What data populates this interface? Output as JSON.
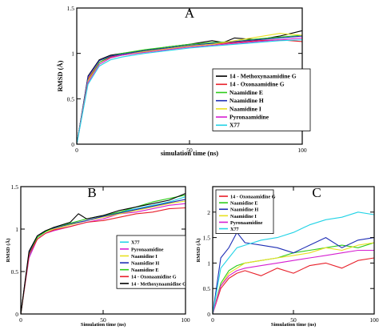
{
  "chart_data": [
    {
      "panel": "A",
      "type": "line",
      "xlabel": "simulation time (ns)",
      "ylabel": "RMSD (Å)",
      "xlim": [
        0,
        100
      ],
      "ylim": [
        0,
        1.5
      ],
      "xticks": [
        "0",
        "50",
        "100"
      ],
      "yticks": [
        "0",
        "0.5",
        "1",
        "1.5"
      ],
      "grid": false,
      "legend": "center-right",
      "series": [
        {
          "name": "14 - Methoxynaamidine G",
          "color": "#000000",
          "x": [
            0,
            5,
            10,
            15,
            20,
            30,
            40,
            50,
            60,
            65,
            70,
            80,
            90,
            100
          ],
          "y": [
            0,
            0.75,
            0.93,
            0.98,
            1.0,
            1.03,
            1.07,
            1.1,
            1.14,
            1.12,
            1.17,
            1.15,
            1.19,
            1.25
          ]
        },
        {
          "name": "14 - Oxonaamidine G",
          "color": "#e8202a",
          "x": [
            0,
            5,
            10,
            15,
            20,
            30,
            40,
            50,
            60,
            70,
            80,
            90,
            100
          ],
          "y": [
            0,
            0.72,
            0.9,
            0.96,
            0.98,
            1.02,
            1.05,
            1.08,
            1.1,
            1.12,
            1.14,
            1.15,
            1.13
          ]
        },
        {
          "name": "Naamidine E",
          "color": "#2ecc1a",
          "x": [
            0,
            5,
            10,
            15,
            20,
            30,
            40,
            50,
            60,
            70,
            80,
            90,
            100
          ],
          "y": [
            0,
            0.7,
            0.9,
            0.97,
            1.0,
            1.04,
            1.07,
            1.1,
            1.12,
            1.13,
            1.16,
            1.18,
            1.2
          ]
        },
        {
          "name": "Naamidine H",
          "color": "#1f2fb5",
          "x": [
            0,
            5,
            10,
            15,
            20,
            30,
            40,
            50,
            60,
            70,
            80,
            90,
            100
          ],
          "y": [
            0,
            0.74,
            0.92,
            0.97,
            0.99,
            1.03,
            1.06,
            1.09,
            1.11,
            1.13,
            1.15,
            1.17,
            1.19
          ]
        },
        {
          "name": "Naamidine I",
          "color": "#e8e020",
          "x": [
            0,
            5,
            10,
            15,
            20,
            30,
            40,
            50,
            60,
            70,
            80,
            90,
            100
          ],
          "y": [
            0,
            0.7,
            0.88,
            0.95,
            0.98,
            1.02,
            1.05,
            1.08,
            1.1,
            1.14,
            1.18,
            1.22,
            1.2
          ]
        },
        {
          "name": "Pyronaamidine",
          "color": "#d61fd1",
          "x": [
            0,
            5,
            10,
            15,
            20,
            30,
            40,
            50,
            60,
            70,
            80,
            90,
            100
          ],
          "y": [
            0,
            0.68,
            0.88,
            0.95,
            0.98,
            1.01,
            1.04,
            1.07,
            1.09,
            1.11,
            1.13,
            1.15,
            1.17
          ]
        },
        {
          "name": "X77",
          "color": "#22d3e6",
          "x": [
            0,
            5,
            10,
            15,
            20,
            30,
            40,
            50,
            60,
            70,
            80,
            90,
            100
          ],
          "y": [
            0,
            0.66,
            0.86,
            0.93,
            0.96,
            1.0,
            1.03,
            1.06,
            1.08,
            1.1,
            1.12,
            1.14,
            1.15
          ]
        }
      ]
    },
    {
      "panel": "B",
      "type": "line",
      "xlabel": "Simulation time (ns)",
      "ylabel": "RMSD (Å)",
      "xlim": [
        0,
        100
      ],
      "ylim": [
        0,
        1.5
      ],
      "xticks": [
        "0",
        "50",
        "100"
      ],
      "yticks": [
        "0",
        "0.5",
        "1",
        "1.5"
      ],
      "grid": false,
      "legend": "center-right",
      "series": [
        {
          "name": "X77",
          "color": "#22d3e6",
          "x": [
            0,
            5,
            10,
            15,
            20,
            30,
            40,
            50,
            60,
            70,
            80,
            90,
            100
          ],
          "y": [
            0,
            0.68,
            0.9,
            0.97,
            1.0,
            1.05,
            1.1,
            1.15,
            1.2,
            1.24,
            1.28,
            1.32,
            1.38
          ]
        },
        {
          "name": "Pyronaamidine",
          "color": "#d61fd1",
          "x": [
            0,
            5,
            10,
            15,
            20,
            30,
            40,
            50,
            60,
            70,
            80,
            90,
            100
          ],
          "y": [
            0,
            0.66,
            0.88,
            0.95,
            0.98,
            1.03,
            1.08,
            1.12,
            1.18,
            1.2,
            1.24,
            1.28,
            1.3
          ]
        },
        {
          "name": "Naamidine I",
          "color": "#e8e020",
          "x": [
            0,
            5,
            10,
            15,
            20,
            30,
            40,
            50,
            60,
            70,
            80,
            90,
            100
          ],
          "y": [
            0,
            0.7,
            0.9,
            0.97,
            1.0,
            1.05,
            1.1,
            1.14,
            1.18,
            1.22,
            1.26,
            1.3,
            1.33
          ]
        },
        {
          "name": "Naamidine H",
          "color": "#1f2fb5",
          "x": [
            0,
            5,
            10,
            15,
            20,
            30,
            40,
            50,
            60,
            70,
            80,
            90,
            100
          ],
          "y": [
            0,
            0.72,
            0.92,
            0.98,
            1.01,
            1.06,
            1.1,
            1.15,
            1.19,
            1.23,
            1.27,
            1.31,
            1.35
          ]
        },
        {
          "name": "Naamidine E",
          "color": "#2ecc1a",
          "x": [
            0,
            5,
            10,
            15,
            20,
            30,
            40,
            50,
            60,
            70,
            80,
            90,
            100
          ],
          "y": [
            0,
            0.7,
            0.9,
            0.97,
            1.02,
            1.07,
            1.12,
            1.16,
            1.2,
            1.26,
            1.32,
            1.36,
            1.4
          ]
        },
        {
          "name": "14 - Oxonaamidine G",
          "color": "#e8202a",
          "x": [
            0,
            5,
            10,
            15,
            20,
            30,
            40,
            50,
            60,
            70,
            80,
            90,
            100
          ],
          "y": [
            0,
            0.7,
            0.88,
            0.95,
            0.99,
            1.03,
            1.08,
            1.1,
            1.14,
            1.18,
            1.2,
            1.24,
            1.25
          ]
        },
        {
          "name": "14 - Methoxynaamidine G",
          "color": "#000000",
          "x": [
            0,
            5,
            10,
            15,
            20,
            30,
            35,
            40,
            50,
            60,
            70,
            80,
            90,
            100
          ],
          "y": [
            0,
            0.74,
            0.92,
            0.98,
            1.02,
            1.08,
            1.18,
            1.12,
            1.16,
            1.22,
            1.26,
            1.3,
            1.34,
            1.42
          ]
        }
      ]
    },
    {
      "panel": "C",
      "type": "line",
      "xlabel": "Simulation time (ns)",
      "ylabel": "RMSD (Å)",
      "xlim": [
        0,
        100
      ],
      "ylim": [
        0,
        2.5
      ],
      "xticks": [
        "0",
        "50",
        "100"
      ],
      "yticks": [
        "0",
        "0.5",
        "1",
        "1.5",
        "2"
      ],
      "grid": false,
      "legend": "top-left",
      "series": [
        {
          "name": "14 - Oxonaamidine G",
          "color": "#e8202a",
          "x": [
            0,
            5,
            10,
            15,
            20,
            30,
            40,
            50,
            60,
            70,
            80,
            90,
            100
          ],
          "y": [
            0,
            0.5,
            0.7,
            0.8,
            0.85,
            0.75,
            0.9,
            0.8,
            0.95,
            1.0,
            0.9,
            1.05,
            1.1
          ]
        },
        {
          "name": "Naamidine E",
          "color": "#2ecc1a",
          "x": [
            0,
            5,
            10,
            15,
            20,
            30,
            40,
            50,
            60,
            70,
            80,
            90,
            100
          ],
          "y": [
            0,
            0.6,
            0.85,
            0.95,
            1.0,
            1.05,
            1.1,
            1.2,
            1.25,
            1.3,
            1.35,
            1.3,
            1.4
          ]
        },
        {
          "name": "Naamidine H",
          "color": "#1f2fb5",
          "x": [
            0,
            5,
            10,
            15,
            20,
            30,
            40,
            50,
            60,
            70,
            80,
            90,
            100
          ],
          "y": [
            0,
            1.1,
            1.3,
            1.6,
            1.4,
            1.35,
            1.3,
            1.2,
            1.35,
            1.5,
            1.3,
            1.45,
            1.5
          ]
        },
        {
          "name": "Naamidine I",
          "color": "#e8e020",
          "x": [
            0,
            5,
            10,
            15,
            20,
            30,
            40,
            50,
            60,
            70,
            80,
            90,
            100
          ],
          "y": [
            0,
            0.55,
            0.8,
            0.9,
            1.0,
            1.05,
            1.1,
            1.15,
            1.2,
            1.3,
            1.25,
            1.35,
            1.4
          ]
        },
        {
          "name": "Pyronaamidine",
          "color": "#d61fd1",
          "x": [
            0,
            5,
            10,
            15,
            20,
            30,
            40,
            50,
            60,
            70,
            80,
            90,
            100
          ],
          "y": [
            0,
            0.55,
            0.75,
            0.85,
            0.9,
            0.95,
            1.0,
            1.05,
            1.1,
            1.15,
            1.2,
            1.25,
            1.25
          ]
        },
        {
          "name": "X77",
          "color": "#22d3e6",
          "x": [
            0,
            5,
            10,
            15,
            20,
            30,
            40,
            50,
            60,
            70,
            80,
            90,
            100
          ],
          "y": [
            0,
            0.9,
            1.1,
            1.3,
            1.35,
            1.45,
            1.5,
            1.6,
            1.75,
            1.85,
            1.9,
            2.0,
            1.95
          ]
        }
      ]
    }
  ]
}
